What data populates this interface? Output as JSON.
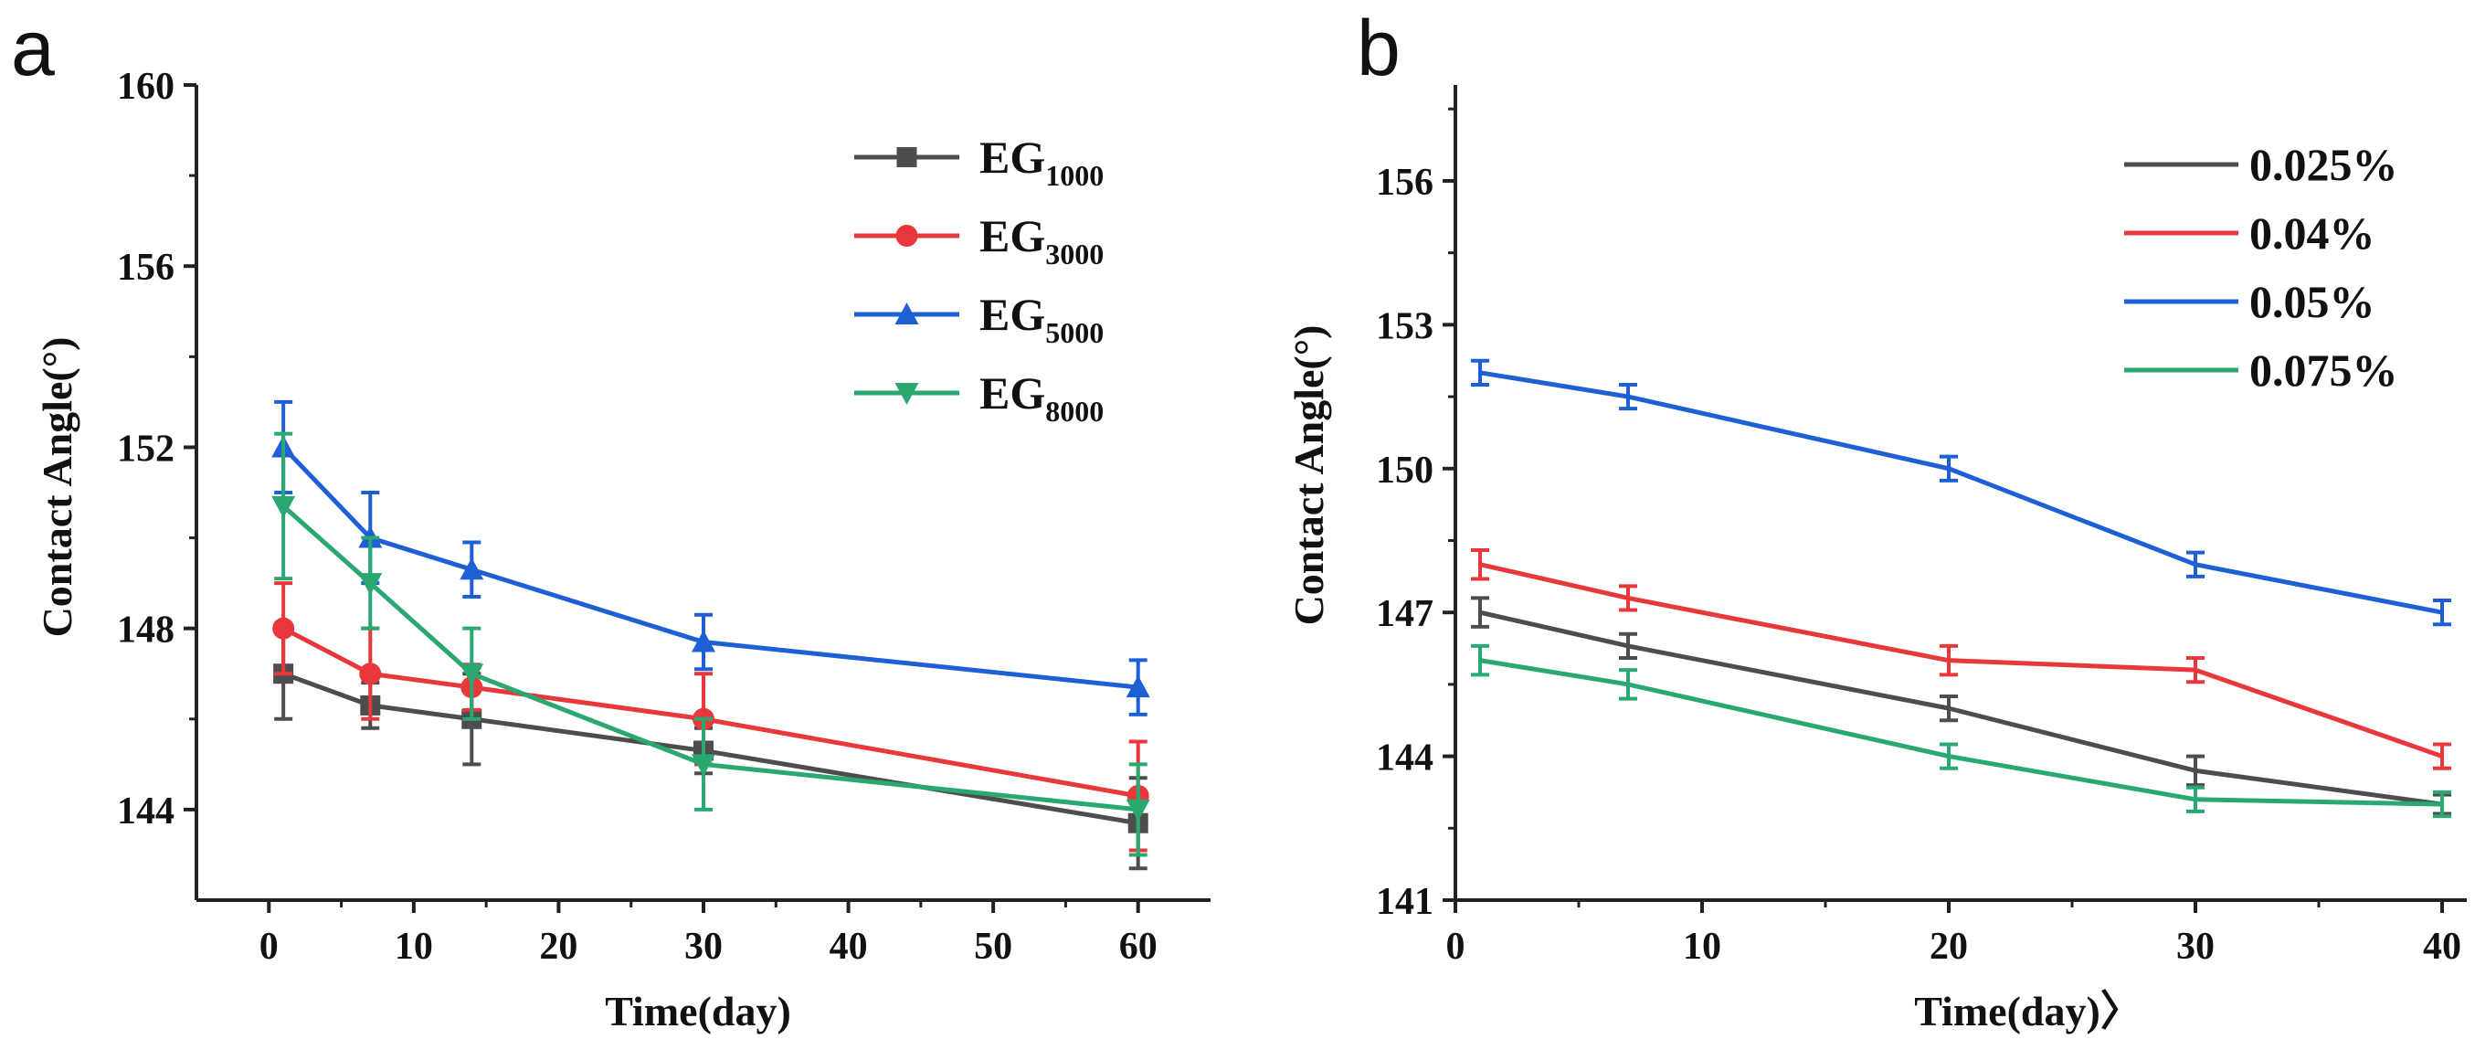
{
  "chart_data": [
    {
      "panel_label": "a",
      "type": "line",
      "xlabel": "Time(day)",
      "ylabel": "Contact Angle(°)",
      "xlim": [
        -5,
        65
      ],
      "ylim": [
        142,
        160
      ],
      "xticks": [
        0,
        10,
        20,
        30,
        40,
        50,
        60
      ],
      "yticks": [
        144,
        148,
        152,
        156,
        160
      ],
      "legend_position": "top-right",
      "series": [
        {
          "name": "EG",
          "subscript": "1000",
          "color": "#4d4d4d",
          "marker": "square",
          "x": [
            1,
            7,
            14,
            30,
            60
          ],
          "y": [
            147.0,
            146.3,
            146.0,
            145.3,
            143.7
          ],
          "err": [
            1.0,
            0.5,
            1.0,
            0.5,
            1.0
          ]
        },
        {
          "name": "EG",
          "subscript": "3000",
          "color": "#e8383b",
          "marker": "circle",
          "x": [
            1,
            7,
            14,
            30,
            60
          ],
          "y": [
            148.0,
            147.0,
            146.7,
            146.0,
            144.3
          ],
          "err": [
            1.0,
            1.0,
            0.5,
            1.0,
            1.2
          ]
        },
        {
          "name": "EG",
          "subscript": "5000",
          "color": "#1f5fd6",
          "marker": "triangle-up",
          "x": [
            1,
            7,
            14,
            30,
            60
          ],
          "y": [
            152.0,
            150.0,
            149.3,
            147.7,
            146.7
          ],
          "err": [
            1.0,
            1.0,
            0.6,
            0.6,
            0.6
          ]
        },
        {
          "name": "EG",
          "subscript": "8000",
          "color": "#2aa872",
          "marker": "triangle-down",
          "x": [
            1,
            7,
            14,
            30,
            60
          ],
          "y": [
            150.7,
            149.0,
            147.0,
            145.0,
            144.0
          ],
          "err": [
            1.6,
            1.0,
            1.0,
            1.0,
            1.0
          ]
        }
      ]
    },
    {
      "panel_label": "b",
      "type": "line",
      "xlabel": "Time(day)〉",
      "ylabel": "Contact Angle(°)",
      "xlim": [
        0,
        41
      ],
      "ylim": [
        141,
        158
      ],
      "xticks": [
        0,
        10,
        20,
        30,
        40
      ],
      "yticks": [
        141,
        144,
        147,
        150,
        153,
        156
      ],
      "legend_position": "top-right",
      "series": [
        {
          "name": "0.025%",
          "color": "#4d4d4d",
          "x": [
            1,
            7,
            20,
            30,
            40
          ],
          "y": [
            147.0,
            146.3,
            145.0,
            143.7,
            143.0
          ],
          "err": [
            0.3,
            0.25,
            0.25,
            0.3,
            0.2
          ]
        },
        {
          "name": "0.04%",
          "color": "#e8383b",
          "x": [
            1,
            7,
            20,
            30,
            40
          ],
          "y": [
            148.0,
            147.3,
            146.0,
            145.8,
            144.0
          ],
          "err": [
            0.3,
            0.25,
            0.3,
            0.25,
            0.25
          ]
        },
        {
          "name": "0.05%",
          "color": "#1f5fd6",
          "x": [
            1,
            7,
            20,
            30,
            40
          ],
          "y": [
            152.0,
            151.5,
            150.0,
            148.0,
            147.0
          ],
          "err": [
            0.25,
            0.25,
            0.25,
            0.25,
            0.25
          ]
        },
        {
          "name": "0.075%",
          "color": "#2aa872",
          "x": [
            1,
            7,
            20,
            30,
            40
          ],
          "y": [
            146.0,
            145.5,
            144.0,
            143.1,
            143.0
          ],
          "err": [
            0.3,
            0.3,
            0.25,
            0.25,
            0.25
          ]
        }
      ]
    }
  ]
}
